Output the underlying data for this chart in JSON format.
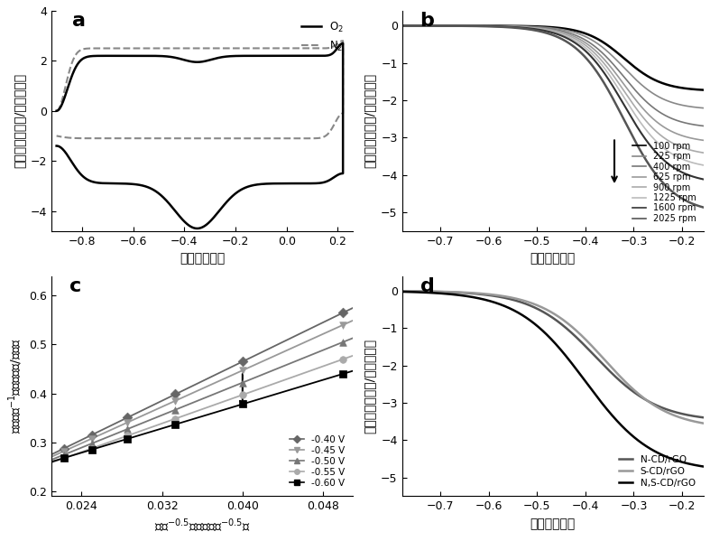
{
  "panel_a": {
    "label": "a",
    "xlabel": "电压（伏特）",
    "ylabel": "电流密度（毫安/平方厘米）",
    "xlim": [
      -0.92,
      0.26
    ],
    "ylim": [
      -4.8,
      3.8
    ],
    "yticks": [
      -4,
      -2,
      0,
      2,
      4
    ],
    "xticks": [
      -0.8,
      -0.6,
      -0.4,
      -0.2,
      0.0,
      0.2
    ]
  },
  "panel_b": {
    "label": "b",
    "xlabel": "电压（伏特）",
    "ylabel": "电流密度（毫安/平方厘米）",
    "xlim": [
      -0.78,
      -0.155
    ],
    "ylim": [
      -5.5,
      0.4
    ],
    "yticks": [
      0,
      -1,
      -2,
      -3,
      -4,
      -5
    ],
    "xticks": [
      -0.7,
      -0.6,
      -0.5,
      -0.4,
      -0.3,
      -0.2
    ],
    "rpm_values": [
      100,
      225,
      400,
      625,
      900,
      1225,
      1600,
      2025
    ]
  },
  "panel_c": {
    "label": "c",
    "xlim": [
      0.021,
      0.051
    ],
    "ylim": [
      0.19,
      0.64
    ],
    "yticks": [
      0.2,
      0.3,
      0.4,
      0.5,
      0.6
    ],
    "xticks": [
      0.024,
      0.032,
      0.04,
      0.048
    ]
  },
  "panel_d": {
    "label": "d",
    "xlabel": "电压（伏特）",
    "ylabel": "电流密度（毫安/平方厘米）",
    "xlim": [
      -0.78,
      -0.155
    ],
    "ylim": [
      -5.5,
      0.4
    ],
    "yticks": [
      0,
      -1,
      -2,
      -3,
      -4,
      -5
    ],
    "xticks": [
      -0.7,
      -0.6,
      -0.5,
      -0.4,
      -0.3,
      -0.2
    ]
  },
  "background_color": "white",
  "tick_labelsize": 9,
  "axis_labelsize": 10,
  "panel_labelsize": 16
}
